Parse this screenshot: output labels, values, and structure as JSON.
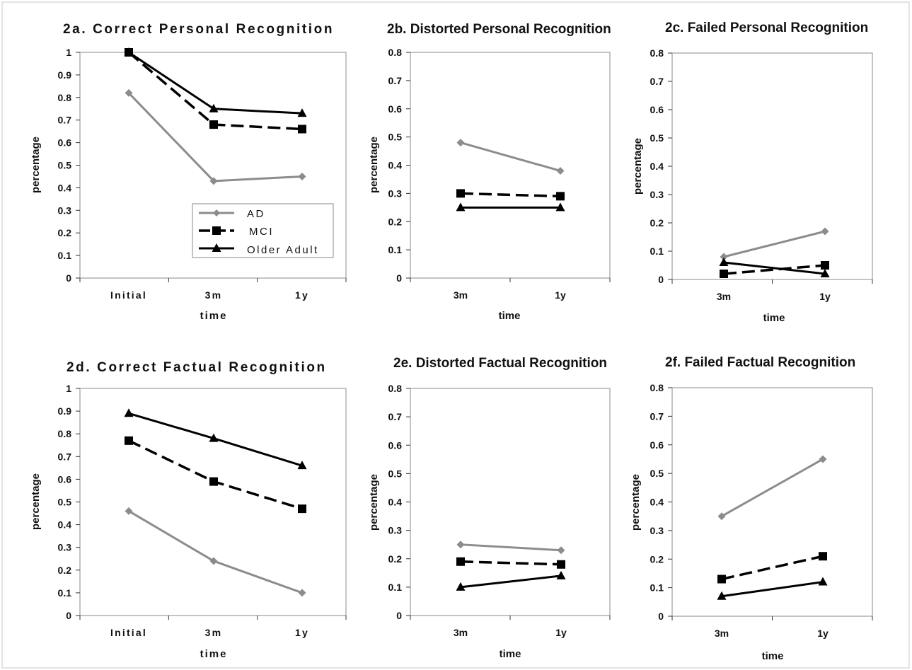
{
  "legend": {
    "entries": [
      {
        "series": "AD",
        "label": "AD"
      },
      {
        "series": "MCI",
        "label": "MCI"
      },
      {
        "series": "Older Adult",
        "label": "Older Adult"
      }
    ]
  },
  "chart_data": [
    {
      "type": "line",
      "title": "2a. Correct Personal Recognition",
      "xlabel": "time",
      "ylabel": "percentage",
      "categories": [
        "Initial",
        "3m",
        "1y"
      ],
      "ylim": [
        0,
        1
      ],
      "yticks": [
        "0",
        "0.1",
        "0.2",
        "0.3",
        "0.4",
        "0.5",
        "0.6",
        "0.7",
        "0.8",
        "0.9",
        "1"
      ],
      "legend": "bottom-right",
      "series": [
        {
          "name": "AD",
          "values": [
            0.82,
            0.43,
            0.45
          ]
        },
        {
          "name": "MCI",
          "values": [
            1.0,
            0.68,
            0.66
          ]
        },
        {
          "name": "Older Adult",
          "values": [
            1.0,
            0.75,
            0.73
          ]
        }
      ]
    },
    {
      "type": "line",
      "title": "2b. Distorted Personal Recognition",
      "xlabel": "time",
      "ylabel": "percentage",
      "categories": [
        "3m",
        "1y"
      ],
      "ylim": [
        0,
        0.8
      ],
      "yticks": [
        "0",
        "0.1",
        "0.2",
        "0.3",
        "0.4",
        "0.5",
        "0.6",
        "0.7",
        "0.8"
      ],
      "series": [
        {
          "name": "AD",
          "values": [
            0.48,
            0.38
          ]
        },
        {
          "name": "MCI",
          "values": [
            0.3,
            0.29
          ]
        },
        {
          "name": "Older Adult",
          "values": [
            0.25,
            0.25
          ]
        }
      ]
    },
    {
      "type": "line",
      "title": "2c. Failed Personal Recognition",
      "xlabel": "time",
      "ylabel": "percentage",
      "categories": [
        "3m",
        "1y"
      ],
      "ylim": [
        0,
        0.8
      ],
      "yticks": [
        "0",
        "0.1",
        "0.2",
        "0.3",
        "0.4",
        "0.5",
        "0.6",
        "0.7",
        "0.8"
      ],
      "series": [
        {
          "name": "AD",
          "values": [
            0.08,
            0.17
          ]
        },
        {
          "name": "MCI",
          "values": [
            0.02,
            0.05
          ]
        },
        {
          "name": "Older Adult",
          "values": [
            0.06,
            0.02
          ]
        }
      ]
    },
    {
      "type": "line",
      "title": "2d. Correct Factual Recognition",
      "xlabel": "time",
      "ylabel": "percentage",
      "categories": [
        "Initial",
        "3m",
        "1y"
      ],
      "ylim": [
        0,
        1
      ],
      "yticks": [
        "0",
        "0.1",
        "0.2",
        "0.3",
        "0.4",
        "0.5",
        "0.6",
        "0.7",
        "0.8",
        "0.9",
        "1"
      ],
      "series": [
        {
          "name": "AD",
          "values": [
            0.46,
            0.24,
            0.1
          ]
        },
        {
          "name": "MCI",
          "values": [
            0.77,
            0.59,
            0.47
          ]
        },
        {
          "name": "Older Adult",
          "values": [
            0.89,
            0.78,
            0.66
          ]
        }
      ]
    },
    {
      "type": "line",
      "title": "2e. Distorted Factual Recognition",
      "xlabel": "time",
      "ylabel": "percentage",
      "categories": [
        "3m",
        "1y"
      ],
      "ylim": [
        0,
        0.8
      ],
      "yticks": [
        "0",
        "0.1",
        "0.2",
        "0.3",
        "0.4",
        "0.5",
        "0.6",
        "0.7",
        "0.8"
      ],
      "series": [
        {
          "name": "AD",
          "values": [
            0.25,
            0.23
          ]
        },
        {
          "name": "MCI",
          "values": [
            0.19,
            0.18
          ]
        },
        {
          "name": "Older Adult",
          "values": [
            0.1,
            0.14
          ]
        }
      ]
    },
    {
      "type": "line",
      "title": "2f. Failed Factual Recognition",
      "xlabel": "time",
      "ylabel": "percentage",
      "categories": [
        "3m",
        "1y"
      ],
      "ylim": [
        0,
        0.8
      ],
      "yticks": [
        "0",
        "0.1",
        "0.2",
        "0.3",
        "0.4",
        "0.5",
        "0.6",
        "0.7",
        "0.8"
      ],
      "series": [
        {
          "name": "AD",
          "values": [
            0.35,
            0.55
          ]
        },
        {
          "name": "MCI",
          "values": [
            0.13,
            0.21
          ]
        },
        {
          "name": "Older Adult",
          "values": [
            0.07,
            0.12
          ]
        }
      ]
    }
  ],
  "series_styles": {
    "AD": {
      "color": "#8c8c8c",
      "marker": "diamond",
      "dash": "solid"
    },
    "MCI": {
      "color": "#000000",
      "marker": "square",
      "dash": "dashed"
    },
    "Older Adult": {
      "color": "#000000",
      "marker": "triangle",
      "dash": "solid"
    }
  }
}
